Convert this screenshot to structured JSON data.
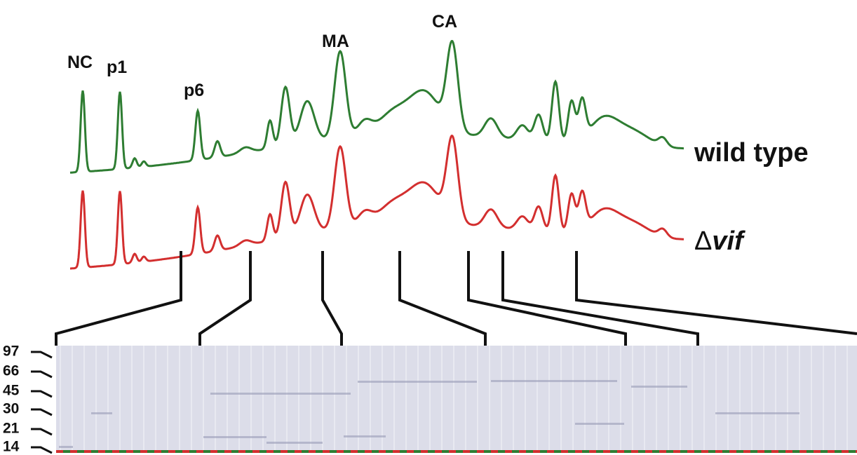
{
  "peak_labels": [
    "NC",
    "p1",
    "p6",
    "MA",
    "CA"
  ],
  "trace_labels": {
    "wild_type": "wild type",
    "mutant": {
      "symbol": "Δ",
      "name": "vif"
    }
  },
  "markers": [
    "97",
    "66",
    "45",
    "30",
    "21",
    "14"
  ]
}
